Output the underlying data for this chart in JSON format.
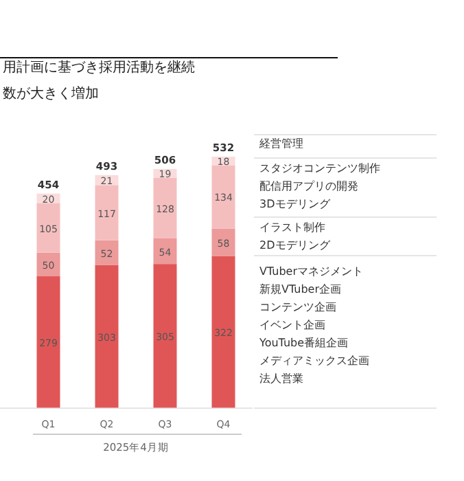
{
  "chart_data": {
    "type": "bar",
    "title": "用計画に基づき採用活動を継続",
    "subtitle": "数が大きく増加",
    "xlabel": "2025年4月期",
    "categories": [
      "Q1",
      "Q2",
      "Q3",
      "Q4"
    ],
    "stacked": true,
    "data_labels": true,
    "series": [
      {
        "color": "#e05656",
        "values": [
          279,
          303,
          305,
          322
        ]
      },
      {
        "color": "#ec9a9a",
        "values": [
          50,
          52,
          54,
          58
        ]
      },
      {
        "color": "#f5bebe",
        "values": [
          105,
          117,
          128,
          134
        ]
      },
      {
        "color": "#fadcdc",
        "values": [
          20,
          21,
          19,
          18
        ]
      }
    ],
    "totals": [
      "454",
      "493",
      "506",
      "532"
    ],
    "annotations": [
      "経営管理",
      "スタジオコンテンツ制作",
      "配信用アプリの開発",
      "3Dモデリング",
      "イラスト制作",
      "2Dモデリング",
      "VTuberマネジメント",
      "新規VTuber企画",
      "コンテンツ企画",
      "イベント企画",
      "YouTube番組企画",
      "メディアミックス企画",
      "法人営業"
    ]
  }
}
